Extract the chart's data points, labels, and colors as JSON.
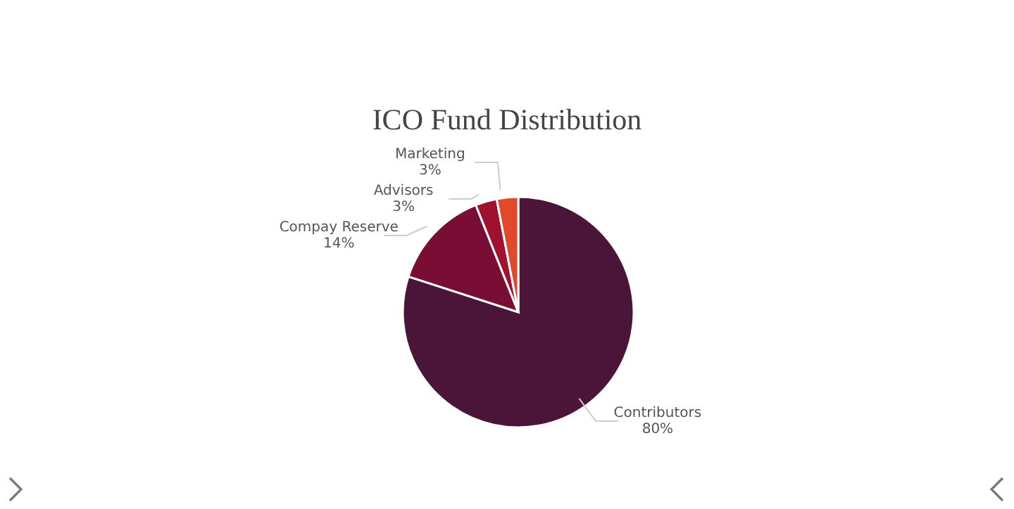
{
  "chart_data": {
    "type": "pie",
    "title": "ICO Fund Distribution",
    "categories": [
      "Contributors",
      "Compay Reserve",
      "Advisors",
      "Marketing"
    ],
    "values": [
      80,
      14,
      3,
      3
    ],
    "colors": [
      "#4a1538",
      "#7a0d33",
      "#a0102f",
      "#e04a28"
    ],
    "value_labels": [
      "80%",
      "14%",
      "3%",
      "3%"
    ]
  }
}
